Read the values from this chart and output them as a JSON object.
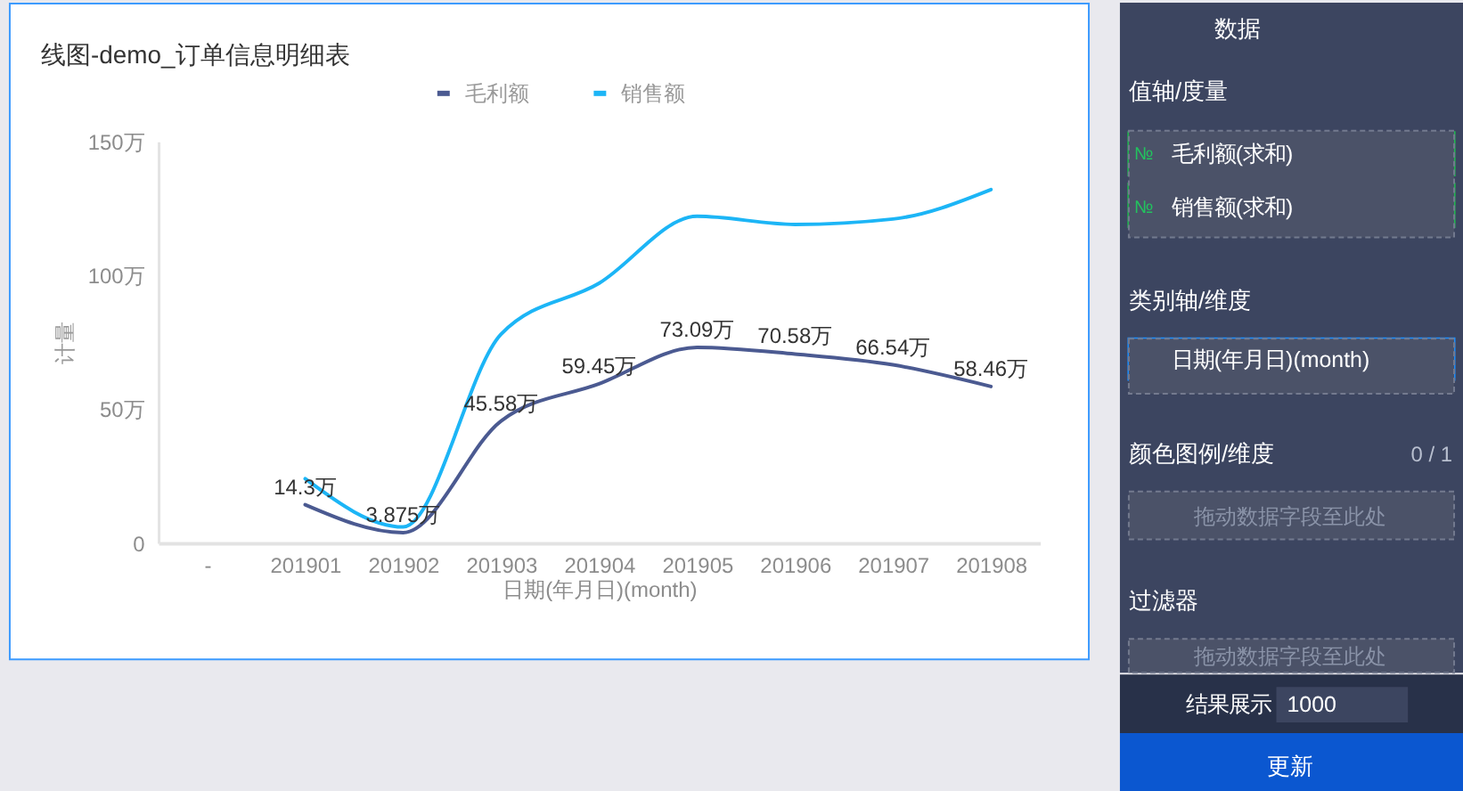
{
  "chart_data": [
    {
      "type": "line",
      "title": "线图-demo_订单信息明细表",
      "xlabel": "日期(年月日)(month)",
      "ylabel": "计量",
      "categories": [
        "-",
        "201901",
        "201902",
        "201903",
        "201904",
        "201905",
        "201906",
        "201907",
        "201908"
      ],
      "series": [
        {
          "name": "毛利额",
          "color": "#4b5a91",
          "values": [
            null,
            14.3,
            3.875,
            45.58,
            59.45,
            73.09,
            70.58,
            66.54,
            58.46
          ],
          "value_labels": [
            null,
            "14.3万",
            "3.875万",
            "45.58万",
            "59.45万",
            "73.09万",
            "70.58万",
            "66.54万",
            "58.46万"
          ]
        },
        {
          "name": "销售额",
          "color": "#1cb5f6",
          "values": [
            null,
            24,
            6,
            78,
            97,
            122,
            119,
            121,
            132
          ]
        }
      ],
      "ylim": [
        0,
        150
      ],
      "yticks": [
        0,
        {
          "value": 50,
          "label": "50万"
        },
        {
          "value": 100,
          "label": "100万"
        },
        {
          "value": 150,
          "label": "150万"
        }
      ],
      "legend": "top"
    },
    {
      "type": "other",
      "annotations": [
        "数据",
        "值轴/度量",
        "№",
        "毛利额(求和)",
        "№",
        "销售额(求和)",
        "类别轴/维度",
        "日期(年月日)(month)",
        "颜色图例/维度",
        "0 / 1",
        "拖动数据字段至此处",
        "过滤器",
        "拖动数据字段至此处",
        "结果展示",
        "1000",
        "更新"
      ]
    }
  ]
}
